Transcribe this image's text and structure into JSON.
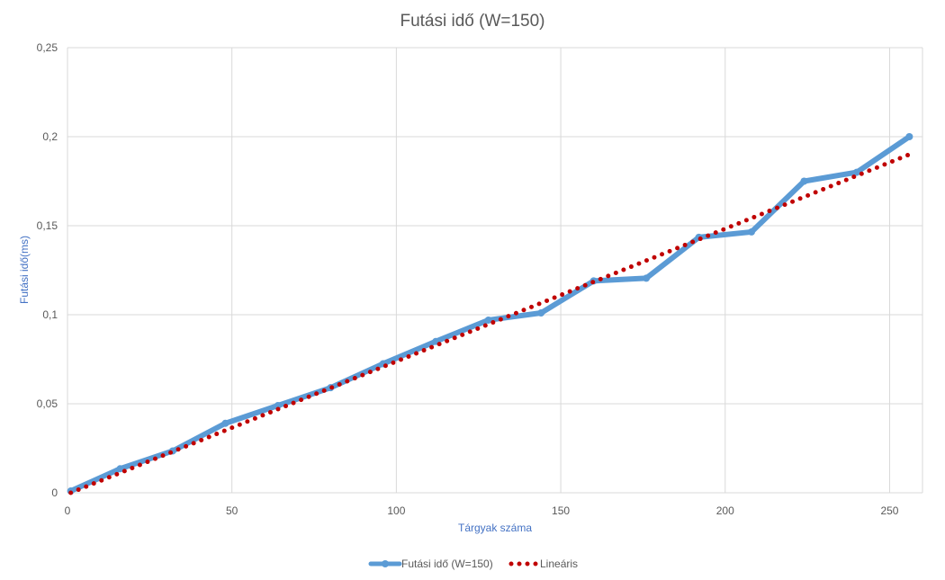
{
  "chart_data": {
    "type": "line",
    "title": "Futási idő (W=150)",
    "xlabel": "Tárgyak száma",
    "ylabel": "Futási idő(ms)",
    "xlim": [
      0,
      260
    ],
    "ylim": [
      0,
      0.25
    ],
    "x_ticks": [
      0,
      50,
      100,
      150,
      200,
      250
    ],
    "x_tick_labels": [
      "0",
      "50",
      "100",
      "150",
      "200",
      "250"
    ],
    "y_ticks": [
      0,
      0.05,
      0.1,
      0.15,
      0.2,
      0.25
    ],
    "y_tick_labels": [
      "0",
      "0,05",
      "0,1",
      "0,15",
      "0,2",
      "0,25"
    ],
    "grid": true,
    "legend_position": "bottom",
    "series": [
      {
        "name": "Futási idő (W=150)",
        "color": "#5b9bd5",
        "style": "solid",
        "x": [
          1,
          16,
          32,
          48,
          64,
          80,
          96,
          112,
          128,
          144,
          160,
          176,
          192,
          208,
          224,
          240,
          256
        ],
        "y": [
          0.001,
          0.0135,
          0.0235,
          0.039,
          0.049,
          0.059,
          0.0725,
          0.085,
          0.097,
          0.101,
          0.119,
          0.1205,
          0.1435,
          0.1465,
          0.175,
          0.18,
          0.2
        ]
      },
      {
        "name": "Lineáris",
        "color": "#c00000",
        "style": "dotted",
        "x": [
          1,
          256
        ],
        "y": [
          0,
          0.19
        ]
      }
    ]
  }
}
